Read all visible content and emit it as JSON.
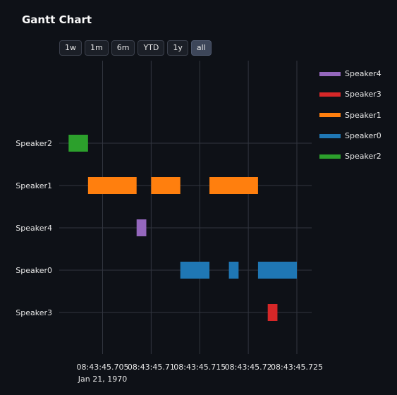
{
  "title": "Gantt Chart",
  "range_buttons": [
    "1w",
    "1m",
    "6m",
    "YTD",
    "1y",
    "all"
  ],
  "active_range": "all",
  "chart_data": {
    "type": "gantt",
    "x_ticks": [
      "08:43:45.705",
      "08:43:45.71",
      "08:43:45.715",
      "08:43:45.72",
      "08:43:45.725"
    ],
    "x_date_label": "Jan 21, 1970",
    "y_categories": [
      "Speaker2",
      "Speaker1",
      "Speaker4",
      "Speaker0",
      "Speaker3"
    ],
    "colors": {
      "Speaker4": "#9467bd",
      "Speaker3": "#d62728",
      "Speaker1": "#ff7f0e",
      "Speaker0": "#1f77b4",
      "Speaker2": "#2ca02c"
    },
    "legend": [
      "Speaker4",
      "Speaker3",
      "Speaker1",
      "Speaker0",
      "Speaker2"
    ],
    "tasks": [
      {
        "speaker": "Speaker2",
        "start": "08:43:45.7015",
        "end": "08:43:45.7035"
      },
      {
        "speaker": "Speaker1",
        "start": "08:43:45.7035",
        "end": "08:43:45.7085"
      },
      {
        "speaker": "Speaker1",
        "start": "08:43:45.7100",
        "end": "08:43:45.7130"
      },
      {
        "speaker": "Speaker1",
        "start": "08:43:45.7160",
        "end": "08:43:45.7210"
      },
      {
        "speaker": "Speaker4",
        "start": "08:43:45.7085",
        "end": "08:43:45.7095"
      },
      {
        "speaker": "Speaker0",
        "start": "08:43:45.7130",
        "end": "08:43:45.7160"
      },
      {
        "speaker": "Speaker0",
        "start": "08:43:45.7180",
        "end": "08:43:45.7190"
      },
      {
        "speaker": "Speaker0",
        "start": "08:43:45.7210",
        "end": "08:43:45.7250"
      },
      {
        "speaker": "Speaker3",
        "start": "08:43:45.7220",
        "end": "08:43:45.7230"
      }
    ]
  }
}
